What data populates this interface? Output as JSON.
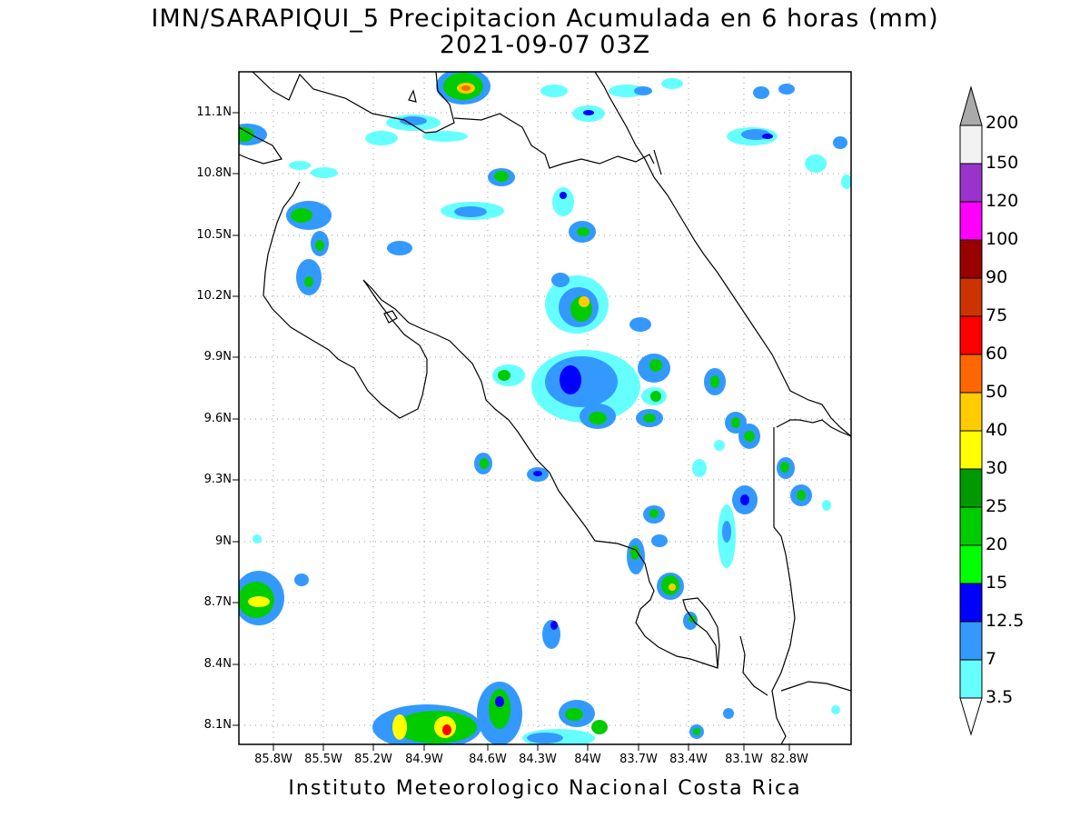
{
  "title_line1": "IMN/SARAPIQUI_5 Precipitacion Acumulada en 6 horas (mm)",
  "title_line2": "2021-09-07 03Z",
  "footer": "Instituto Meteorologico Nacional Costa Rica",
  "map": {
    "lat_range": [
      8.0,
      11.3
    ],
    "lon_range": [
      -86.0,
      -83.0
    ],
    "lat_ticks": [
      "11.1N",
      "10.8N",
      "10.5N",
      "10.2N",
      "9.9N",
      "9.6N",
      "9.3N",
      "9N",
      "8.7N",
      "8.4N",
      "8.1N"
    ],
    "lon_ticks": [
      "85.8W",
      "85.5W",
      "85.2W",
      "84.9W",
      "84.6W",
      "84.3W",
      "84W",
      "83.7W",
      "83.4W",
      "83.1W",
      "82.8W"
    ],
    "gridlines": "dotted",
    "coastline_color": "#000000"
  },
  "colorbar": {
    "levels": [
      "3.5",
      "7",
      "12.5",
      "15",
      "20",
      "25",
      "30",
      "40",
      "50",
      "60",
      "75",
      "90",
      "100",
      "120",
      "150",
      "200"
    ],
    "colors": [
      "#66ffff",
      "#3399ff",
      "#0000ff",
      "#00ff00",
      "#00cc00",
      "#009900",
      "#ffff00",
      "#ffcc00",
      "#ff6600",
      "#ff0000",
      "#cc3300",
      "#990000",
      "#ff00ff",
      "#9933cc",
      "#f2f2f2",
      "#aaaaaa"
    ]
  }
}
